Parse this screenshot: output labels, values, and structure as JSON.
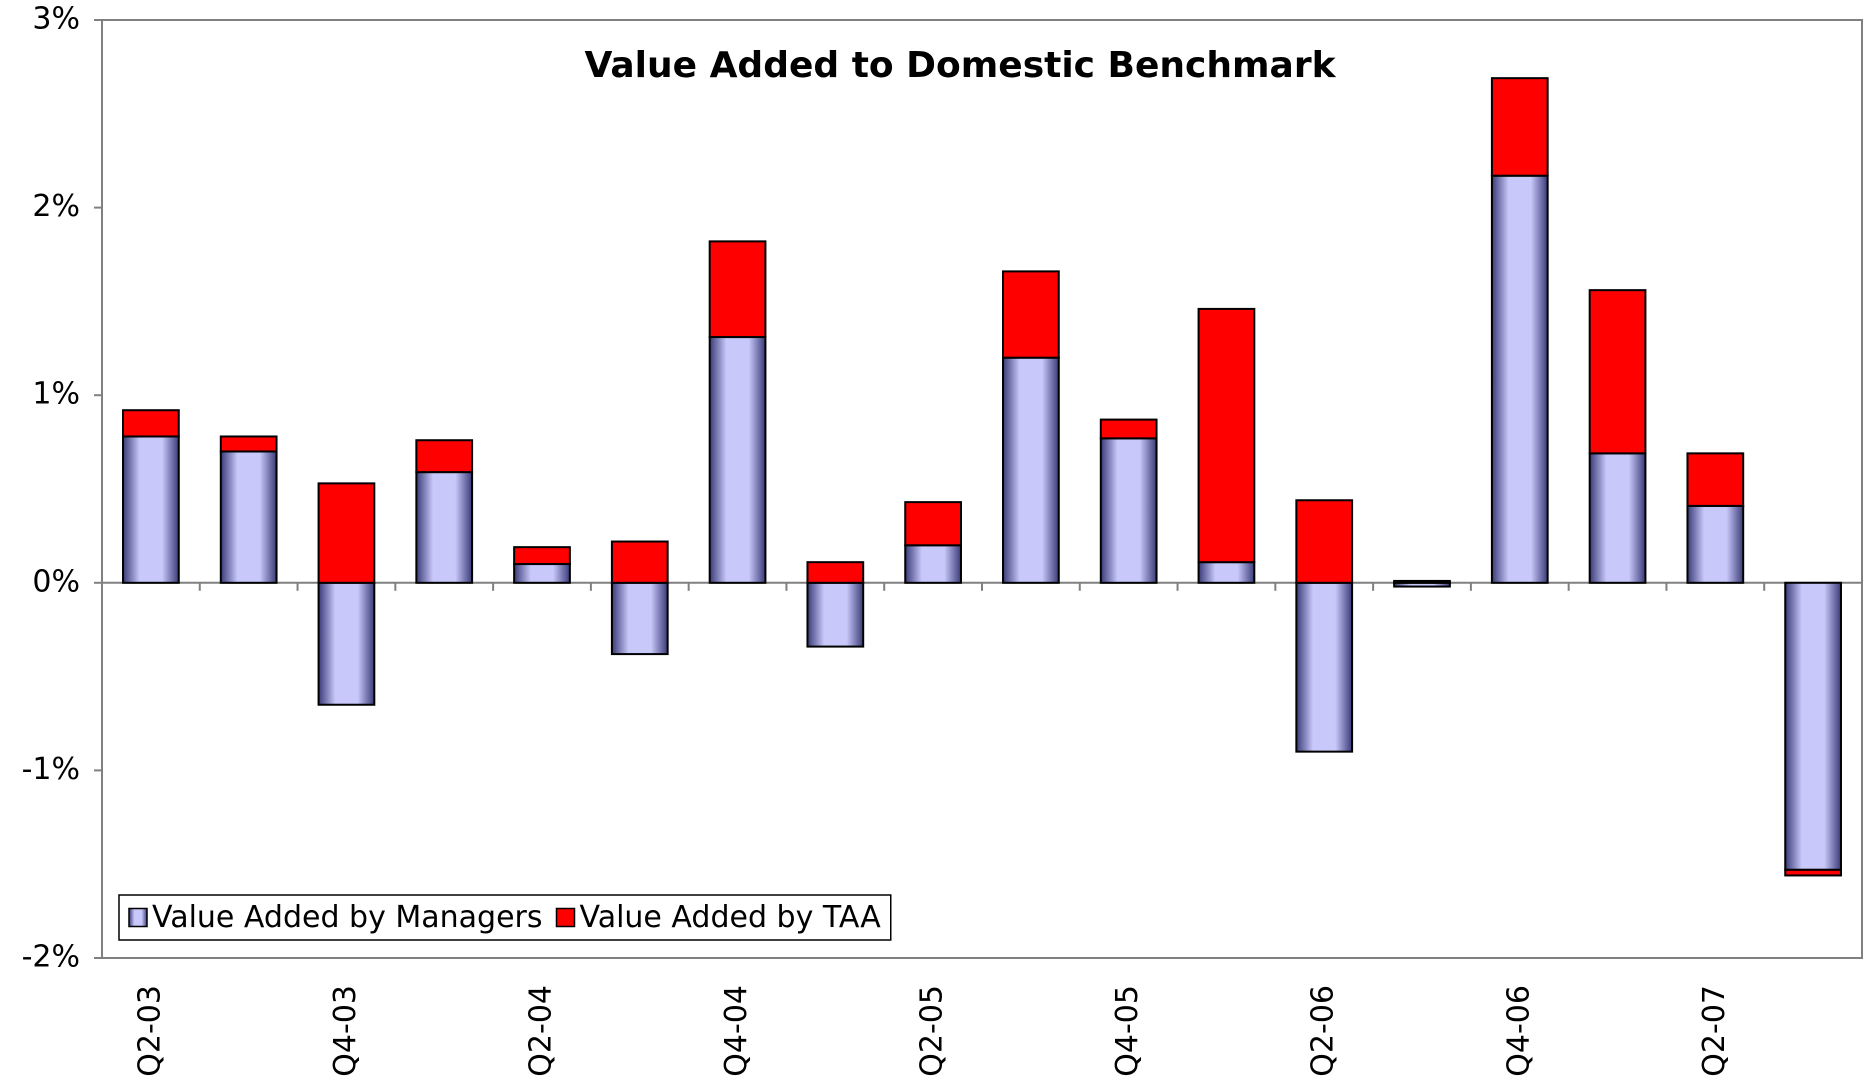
{
  "chart_data": {
    "type": "stacked-bar",
    "title": "Value Added to Domestic Benchmark",
    "categories": [
      "Q2-03",
      null,
      "Q4-03",
      null,
      "Q2-04",
      null,
      "Q4-04",
      null,
      "Q2-05",
      null,
      "Q4-05",
      null,
      "Q2-06",
      null,
      "Q4-06",
      null,
      "Q2-07",
      null
    ],
    "series": [
      {
        "name": "Value Added by Managers",
        "color": "#c8c8fa",
        "values": [
          0.78,
          0.7,
          -0.65,
          0.59,
          0.1,
          -0.38,
          1.31,
          -0.34,
          0.2,
          1.2,
          0.77,
          0.11,
          -0.9,
          -0.02,
          2.17,
          0.69,
          0.41,
          -1.53
        ]
      },
      {
        "name": "Value Added by TAA",
        "color": "#ff0000",
        "values": [
          0.14,
          0.08,
          0.53,
          0.17,
          0.09,
          0.22,
          0.51,
          0.11,
          0.23,
          0.46,
          0.1,
          1.35,
          0.44,
          0.01,
          0.52,
          0.87,
          0.28,
          -0.03
        ]
      }
    ],
    "ylim": [
      -2,
      3
    ],
    "yticks": [
      {
        "value": -2,
        "label": "-2%"
      },
      {
        "value": -1,
        "label": "-1%"
      },
      {
        "value": 0,
        "label": "0%"
      },
      {
        "value": 1,
        "label": "1%"
      },
      {
        "value": 2,
        "label": "2%"
      },
      {
        "value": 3,
        "label": "3%"
      }
    ],
    "legend": "lower left"
  }
}
